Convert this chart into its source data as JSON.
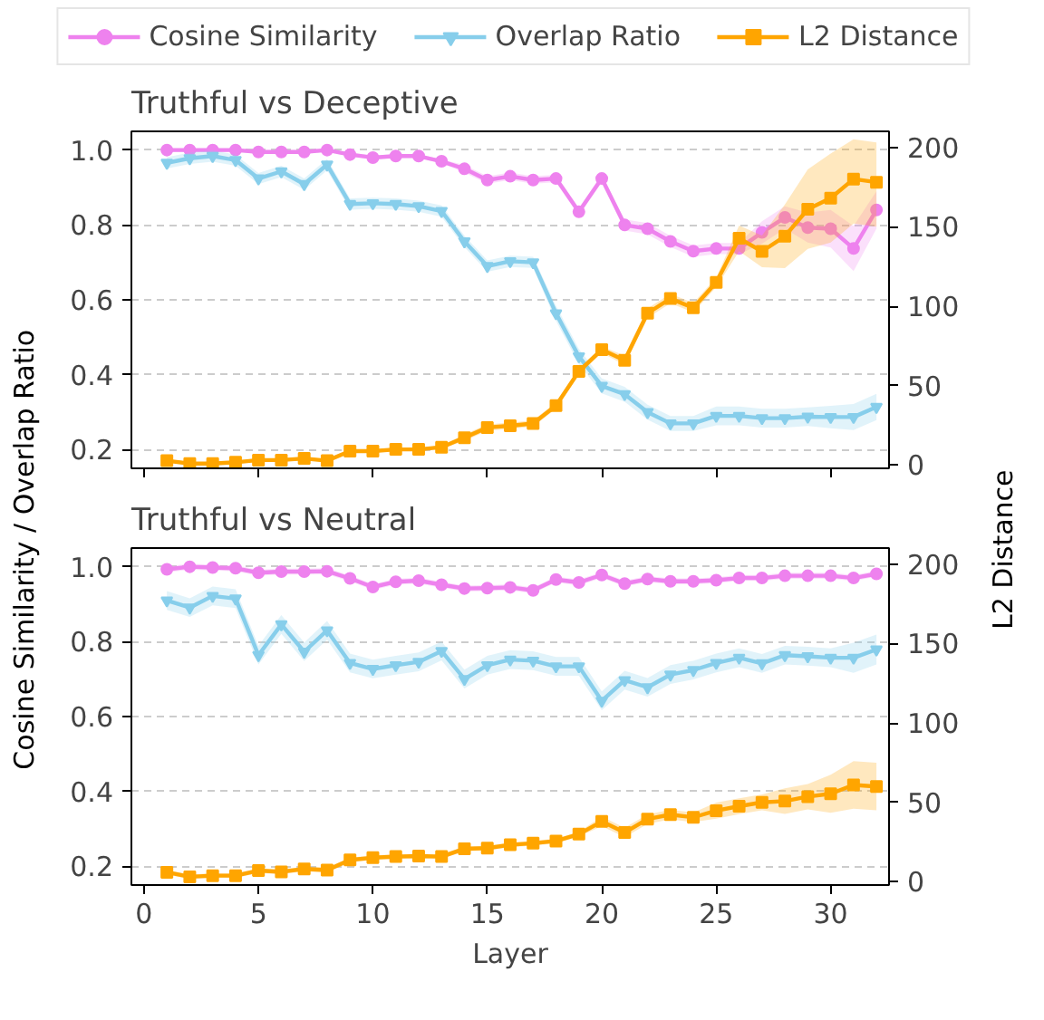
{
  "chart_data": [
    {
      "type": "line",
      "title": "Truthful vs Deceptive",
      "ylabel": "Cosine Similarity / Overlap Ratio",
      "y2label": "L2 Distance",
      "legend": "top",
      "grid": "y",
      "tick_labels": "y",
      "x": [
        1,
        2,
        3,
        4,
        5,
        6,
        7,
        8,
        9,
        10,
        11,
        12,
        13,
        14,
        15,
        16,
        17,
        18,
        19,
        20,
        21,
        22,
        23,
        24,
        25,
        26,
        27,
        28,
        29,
        30,
        31,
        32
      ],
      "xlim": [
        -0.55,
        32.55
      ],
      "xticks": [
        0,
        5,
        10,
        15,
        20,
        25,
        30
      ],
      "ylim": [
        0.15,
        1.05
      ],
      "yticks": [
        0.2,
        0.4,
        0.6,
        0.8,
        {
          "value": 1,
          "label": "1.0"
        }
      ],
      "y2lim": [
        -2,
        210
      ],
      "y2ticks": [
        0,
        50,
        100,
        150,
        200
      ],
      "series": [
        {
          "name": "Cosine Similarity",
          "color": "#ee82ee",
          "marker": "circle",
          "values": [
            1.0,
            1.0,
            1.0,
            1.0,
            0.995,
            0.995,
            0.995,
            1.0,
            0.988,
            0.98,
            0.984,
            0.984,
            0.97,
            0.95,
            0.92,
            0.93,
            0.92,
            0.924,
            0.835,
            0.924,
            0.8,
            0.79,
            0.756,
            0.73,
            0.737,
            0.737,
            0.78,
            0.82,
            0.793,
            0.79,
            0.737,
            0.84
          ],
          "lower": [
            0.995,
            0.995,
            0.995,
            0.995,
            0.99,
            0.99,
            0.99,
            0.995,
            0.983,
            0.975,
            0.979,
            0.979,
            0.965,
            0.94,
            0.91,
            0.92,
            0.91,
            0.914,
            0.825,
            0.914,
            0.785,
            0.775,
            0.741,
            0.715,
            0.722,
            0.722,
            0.75,
            0.79,
            0.753,
            0.74,
            0.677,
            0.79
          ],
          "upper": [
            1.0,
            1.0,
            1.0,
            1.0,
            1.0,
            1.0,
            1.0,
            1.0,
            0.993,
            0.985,
            0.989,
            0.989,
            0.975,
            0.96,
            0.93,
            0.94,
            0.93,
            0.934,
            0.845,
            0.934,
            0.815,
            0.805,
            0.771,
            0.745,
            0.752,
            0.752,
            0.81,
            0.85,
            0.833,
            0.84,
            0.797,
            0.89
          ]
        },
        {
          "name": "Overlap Ratio",
          "color": "#87ceeb",
          "marker": "triangle",
          "values": [
            0.966,
            0.978,
            0.984,
            0.973,
            0.924,
            0.943,
            0.909,
            0.961,
            0.856,
            0.858,
            0.856,
            0.85,
            0.837,
            0.756,
            0.69,
            0.703,
            0.7,
            0.564,
            0.449,
            0.37,
            0.348,
            0.3,
            0.27,
            0.27,
            0.29,
            0.29,
            0.284,
            0.284,
            0.288,
            0.287,
            0.287,
            0.314
          ],
          "lower": [
            0.951,
            0.963,
            0.969,
            0.958,
            0.909,
            0.928,
            0.894,
            0.946,
            0.841,
            0.843,
            0.841,
            0.835,
            0.822,
            0.741,
            0.675,
            0.688,
            0.685,
            0.544,
            0.429,
            0.35,
            0.328,
            0.28,
            0.25,
            0.25,
            0.265,
            0.265,
            0.259,
            0.259,
            0.263,
            0.257,
            0.252,
            0.279
          ],
          "upper": [
            0.981,
            0.993,
            0.999,
            0.988,
            0.939,
            0.958,
            0.924,
            0.976,
            0.871,
            0.873,
            0.871,
            0.865,
            0.852,
            0.771,
            0.705,
            0.718,
            0.715,
            0.584,
            0.469,
            0.39,
            0.368,
            0.32,
            0.29,
            0.29,
            0.315,
            0.315,
            0.309,
            0.309,
            0.313,
            0.317,
            0.322,
            0.349
          ]
        },
        {
          "name": "L2 Distance",
          "color": "#ffa500",
          "marker": "square",
          "axis": "y2",
          "values": [
            2.8,
            1,
            1,
            1.8,
            3.2,
            3.2,
            4.2,
            2.8,
            8.8,
            8.8,
            9.9,
            9.9,
            11.3,
            17.3,
            23.7,
            24.8,
            26.2,
            37.5,
            59,
            72.6,
            66,
            95.6,
            104.8,
            99,
            115,
            142.7,
            134.5,
            144,
            161,
            168,
            180,
            178
          ],
          "lower": [
            1.8,
            0,
            0,
            0.8,
            2.2,
            2.2,
            3.2,
            1.8,
            7.8,
            7.8,
            8.9,
            8.9,
            10.3,
            15.3,
            21.7,
            22.8,
            24.2,
            35.5,
            57,
            70.6,
            63,
            92.6,
            101.8,
            96,
            112,
            134.7,
            124.5,
            124,
            136,
            140,
            152,
            150
          ],
          "upper": [
            3.8,
            2,
            2,
            2.8,
            4.2,
            4.2,
            5.2,
            3.8,
            9.8,
            9.8,
            10.9,
            10.9,
            12.3,
            19.3,
            25.7,
            26.8,
            28.2,
            39.5,
            61,
            74.6,
            69,
            98.6,
            107.8,
            102,
            118,
            150.7,
            144.5,
            164,
            186,
            196,
            205,
            203
          ]
        }
      ]
    },
    {
      "type": "line",
      "title": "Truthful vs Neutral",
      "xlabel": "Layer",
      "grid": "y",
      "x": [
        1,
        2,
        3,
        4,
        5,
        6,
        7,
        8,
        9,
        10,
        11,
        12,
        13,
        14,
        15,
        16,
        17,
        18,
        19,
        20,
        21,
        22,
        23,
        24,
        25,
        26,
        27,
        28,
        29,
        30,
        31,
        32
      ],
      "xlim": [
        -0.55,
        32.55
      ],
      "xticks": [
        0,
        5,
        10,
        15,
        20,
        25,
        30
      ],
      "ylim": [
        0.15,
        1.05
      ],
      "yticks": [
        0.2,
        0.4,
        0.6,
        0.8,
        {
          "value": 1,
          "label": "1.0"
        }
      ],
      "y2lim": [
        -2,
        210
      ],
      "y2ticks": [
        0,
        50,
        100,
        150,
        200
      ],
      "series": [
        {
          "color": "#ee82ee",
          "marker": "circle",
          "values": [
            0.993,
            1.0,
            0.998,
            0.996,
            0.984,
            0.987,
            0.987,
            0.988,
            0.969,
            0.946,
            0.96,
            0.963,
            0.952,
            0.942,
            0.943,
            0.945,
            0.937,
            0.966,
            0.958,
            0.978,
            0.955,
            0.967,
            0.961,
            0.961,
            0.964,
            0.97,
            0.97,
            0.976,
            0.976,
            0.976,
            0.97,
            0.981
          ],
          "lower": [
            0.985,
            0.992,
            0.99,
            0.988,
            0.976,
            0.979,
            0.979,
            0.98,
            0.961,
            0.938,
            0.952,
            0.955,
            0.944,
            0.934,
            0.935,
            0.937,
            0.929,
            0.958,
            0.95,
            0.97,
            0.947,
            0.959,
            0.953,
            0.953,
            0.956,
            0.962,
            0.962,
            0.968,
            0.968,
            0.968,
            0.962,
            0.973
          ],
          "upper": [
            1.001,
            1.008,
            1.006,
            1.004,
            0.992,
            0.995,
            0.995,
            0.996,
            0.977,
            0.954,
            0.968,
            0.971,
            0.96,
            0.95,
            0.951,
            0.953,
            0.945,
            0.974,
            0.966,
            0.986,
            0.963,
            0.975,
            0.969,
            0.969,
            0.972,
            0.978,
            0.978,
            0.984,
            0.984,
            0.984,
            0.978,
            0.989
          ]
        },
        {
          "color": "#87ceeb",
          "marker": "triangle",
          "values": [
            0.91,
            0.891,
            0.922,
            0.915,
            0.764,
            0.846,
            0.773,
            0.83,
            0.743,
            0.727,
            0.737,
            0.746,
            0.775,
            0.7,
            0.737,
            0.752,
            0.749,
            0.734,
            0.734,
            0.642,
            0.697,
            0.678,
            0.712,
            0.724,
            0.743,
            0.757,
            0.742,
            0.764,
            0.761,
            0.757,
            0.757,
            0.779
          ],
          "lower": [
            0.885,
            0.866,
            0.897,
            0.89,
            0.739,
            0.821,
            0.748,
            0.805,
            0.718,
            0.702,
            0.712,
            0.721,
            0.75,
            0.675,
            0.712,
            0.727,
            0.724,
            0.709,
            0.709,
            0.617,
            0.672,
            0.653,
            0.687,
            0.699,
            0.718,
            0.732,
            0.717,
            0.739,
            0.736,
            0.732,
            0.717,
            0.739
          ],
          "upper": [
            0.935,
            0.916,
            0.947,
            0.94,
            0.789,
            0.871,
            0.798,
            0.855,
            0.768,
            0.752,
            0.762,
            0.771,
            0.8,
            0.725,
            0.762,
            0.777,
            0.774,
            0.759,
            0.759,
            0.667,
            0.722,
            0.703,
            0.737,
            0.749,
            0.768,
            0.782,
            0.767,
            0.789,
            0.786,
            0.782,
            0.797,
            0.819
          ]
        },
        {
          "color": "#ffa500",
          "marker": "square",
          "axis": "y2",
          "values": [
            6,
            3.2,
            3.9,
            3.9,
            7.1,
            6.3,
            8.1,
            7.4,
            13.8,
            15.2,
            15.9,
            16.2,
            15.9,
            20.8,
            21.2,
            23.3,
            24.3,
            25.7,
            30,
            38,
            31,
            39.5,
            42.3,
            40.6,
            44.8,
            47.6,
            50,
            50.8,
            53.6,
            55.4,
            61,
            60
          ],
          "lower": [
            4.5,
            1.7,
            2.4,
            2.4,
            5.6,
            4.8,
            6.6,
            5.9,
            12.3,
            13.7,
            14.4,
            14.7,
            14.4,
            19.3,
            19.7,
            21.8,
            22.8,
            24.2,
            28.5,
            35,
            28,
            36.5,
            39.3,
            37.6,
            39.8,
            42.6,
            45,
            42.8,
            45.6,
            43.4,
            46,
            45
          ],
          "upper": [
            7.5,
            4.7,
            5.4,
            5.4,
            8.6,
            7.8,
            9.6,
            8.9,
            15.3,
            16.7,
            17.4,
            17.7,
            17.4,
            22.3,
            22.7,
            24.8,
            25.8,
            27.2,
            31.5,
            41,
            34,
            42.5,
            45.3,
            43.6,
            49.8,
            52.6,
            55,
            58.8,
            61.6,
            67.4,
            76,
            75
          ]
        }
      ]
    }
  ]
}
